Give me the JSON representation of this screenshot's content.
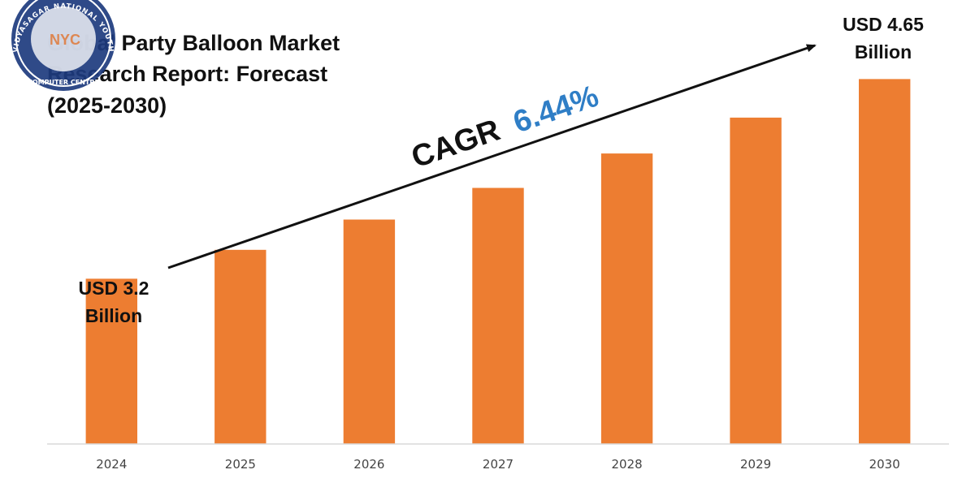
{
  "title_lines": [
    "Global Party Balloon Market",
    "Research Report: Forecast",
    "(2025-2030)"
  ],
  "logo": {
    "ring_text": "VIDYASAGAR NATIONAL YOUTH",
    "bottom_text": "COMPUTER CENTRE",
    "mark": "NYC"
  },
  "cagr": {
    "label": "CAGR",
    "value": "6.44%",
    "value_color": "#2f7ec6"
  },
  "colors": {
    "bar": "#ed7d31",
    "axis": "#d9d9d9",
    "arrow": "#111111"
  },
  "start_label": [
    "USD 3.2",
    "Billion"
  ],
  "end_label": [
    "USD 4.65",
    "Billion"
  ],
  "chart_data": {
    "type": "bar",
    "categories": [
      "2024",
      "2025",
      "2026",
      "2027",
      "2028",
      "2029",
      "2030"
    ],
    "values": [
      3.2,
      3.41,
      3.63,
      3.86,
      4.11,
      4.37,
      4.65
    ],
    "title": "Global Party Balloon Market Research Report: Forecast (2025-2030)",
    "xlabel": "",
    "ylabel": "",
    "ylim": [
      2.0,
      4.8
    ],
    "grid": false,
    "legend": "none"
  }
}
